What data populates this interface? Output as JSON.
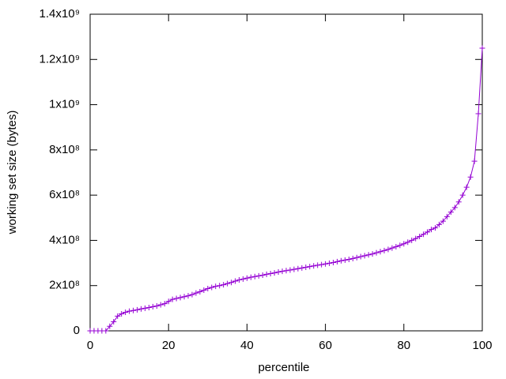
{
  "chart_data": {
    "type": "line",
    "xlabel": "percentile",
    "ylabel": "working set size (bytes)",
    "x": [
      0,
      1,
      2,
      3,
      4,
      5,
      6,
      7,
      8,
      9,
      10,
      11,
      12,
      13,
      14,
      15,
      16,
      17,
      18,
      19,
      20,
      21,
      22,
      23,
      24,
      25,
      26,
      27,
      28,
      29,
      30,
      31,
      32,
      33,
      34,
      35,
      36,
      37,
      38,
      39,
      40,
      41,
      42,
      43,
      44,
      45,
      46,
      47,
      48,
      49,
      50,
      51,
      52,
      53,
      54,
      55,
      56,
      57,
      58,
      59,
      60,
      61,
      62,
      63,
      64,
      65,
      66,
      67,
      68,
      69,
      70,
      71,
      72,
      73,
      74,
      75,
      76,
      77,
      78,
      79,
      80,
      81,
      82,
      83,
      84,
      85,
      86,
      87,
      88,
      89,
      90,
      91,
      92,
      93,
      94,
      95,
      96,
      97,
      98,
      99,
      100
    ],
    "series": [
      {
        "color": "#9400d3",
        "values": [
          0,
          0,
          0,
          0,
          0,
          20000000,
          40000000,
          65000000,
          75000000,
          82000000,
          87000000,
          90000000,
          93000000,
          97000000,
          100000000,
          103000000,
          107000000,
          110000000,
          115000000,
          120000000,
          130000000,
          139000000,
          143000000,
          147000000,
          151000000,
          155000000,
          160000000,
          167000000,
          173000000,
          180000000,
          187000000,
          192000000,
          197000000,
          200000000,
          204000000,
          209000000,
          214000000,
          220000000,
          225000000,
          229000000,
          233000000,
          237000000,
          240000000,
          243000000,
          246000000,
          250000000,
          253000000,
          256000000,
          260000000,
          263000000,
          266000000,
          269000000,
          272000000,
          275000000,
          278000000,
          281000000,
          284000000,
          287000000,
          290000000,
          293000000,
          296000000,
          299000000,
          302000000,
          306000000,
          310000000,
          313000000,
          316000000,
          320000000,
          324000000,
          328000000,
          332000000,
          336000000,
          340000000,
          345000000,
          350000000,
          355000000,
          360000000,
          366000000,
          372000000,
          378000000,
          385000000,
          392000000,
          400000000,
          408000000,
          417000000,
          427000000,
          437000000,
          448000000,
          455000000,
          470000000,
          485000000,
          505000000,
          525000000,
          545000000,
          570000000,
          600000000,
          635000000,
          680000000,
          750000000,
          960000000,
          1250000000
        ]
      }
    ],
    "xlim": [
      0,
      100
    ],
    "xticks": [
      0,
      20,
      40,
      60,
      80,
      100
    ],
    "ylim": [
      0,
      1400000000
    ],
    "yticks": [
      0,
      {
        "value": 200000000,
        "label": "2x10⁸"
      },
      {
        "value": 400000000,
        "label": "4x10⁸"
      },
      {
        "value": 600000000,
        "label": "6x10⁸"
      },
      {
        "value": 800000000,
        "label": "8x10⁸"
      },
      {
        "value": 1000000000,
        "label": "1x10⁹"
      },
      {
        "value": 1200000000,
        "label": "1.2x10⁹"
      },
      {
        "value": 1400000000,
        "label": "1.4x10⁹"
      }
    ]
  }
}
